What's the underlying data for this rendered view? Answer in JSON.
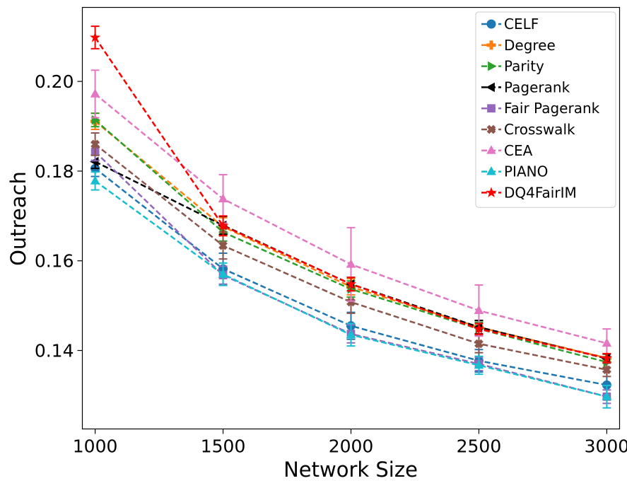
{
  "chart_data": {
    "type": "line",
    "title": "",
    "xlabel": "Network Size",
    "ylabel": "Outreach",
    "x": [
      1000,
      1500,
      2000,
      2500,
      3000
    ],
    "xlim": [
      950,
      3050
    ],
    "ylim": [
      0.1225,
      0.2165
    ],
    "xticks": [
      1000,
      1500,
      2000,
      2500,
      3000
    ],
    "xtick_labels": [
      "1000",
      "1500",
      "2000",
      "2500",
      "3000"
    ],
    "yticks": [
      0.14,
      0.16,
      0.18,
      0.2
    ],
    "ytick_labels": [
      "0.14",
      "0.16",
      "0.18",
      "0.20"
    ],
    "grid": false,
    "legend_position": "top-right",
    "series": [
      {
        "name": "CELF",
        "color": "#1f77b4",
        "marker": "circle",
        "values": [
          0.1806,
          0.1582,
          0.1455,
          0.1377,
          0.1323
        ],
        "errors": [
          0.0018,
          0.0035,
          0.003,
          0.0025,
          0.003
        ]
      },
      {
        "name": "Degree",
        "color": "#ff7f0e",
        "marker": "plus",
        "values": [
          0.1911,
          0.1676,
          0.1542,
          0.1452,
          0.1383
        ],
        "errors": [
          0.0018,
          0.002,
          0.0018,
          0.0015,
          0.001
        ]
      },
      {
        "name": "Parity",
        "color": "#2ca02c",
        "marker": "triangle-right",
        "values": [
          0.1914,
          0.1664,
          0.1537,
          0.1448,
          0.1374
        ],
        "errors": [
          0.0015,
          0.002,
          0.0018,
          0.0015,
          0.0012
        ]
      },
      {
        "name": "Pagerank",
        "color": "#000000",
        "marker": "triangle-left",
        "values": [
          0.1821,
          0.1679,
          0.1548,
          0.1452,
          0.1382
        ],
        "errors": [
          0.0015,
          0.002,
          0.0015,
          0.0015,
          0.001
        ]
      },
      {
        "name": "Fair Pagerank",
        "color": "#9467bd",
        "marker": "square",
        "values": [
          0.1843,
          0.1568,
          0.1437,
          0.137,
          0.1297
        ],
        "errors": [
          0.002,
          0.002,
          0.002,
          0.0015,
          0.0015
        ]
      },
      {
        "name": "Crosswalk",
        "color": "#8c564b",
        "marker": "x-filled",
        "values": [
          0.186,
          0.1634,
          0.1508,
          0.1415,
          0.1357
        ],
        "errors": [
          0.0025,
          0.003,
          0.0025,
          0.002,
          0.0015
        ]
      },
      {
        "name": "CEA",
        "color": "#e377c2",
        "marker": "triangle-up",
        "values": [
          0.1972,
          0.1738,
          0.1592,
          0.1489,
          0.1416
        ],
        "errors": [
          0.0053,
          0.0054,
          0.0082,
          0.0057,
          0.0032
        ]
      },
      {
        "name": "PIANO",
        "color": "#17becf",
        "marker": "triangle-up",
        "values": [
          0.1778,
          0.157,
          0.1435,
          0.1367,
          0.1297
        ],
        "errors": [
          0.002,
          0.0025,
          0.0025,
          0.002,
          0.0025
        ]
      },
      {
        "name": "DQ4FairIM",
        "color": "#ff0000",
        "marker": "star",
        "values": [
          0.2098,
          0.1678,
          0.1548,
          0.1448,
          0.1383
        ],
        "errors": [
          0.0025,
          0.0022,
          0.0015,
          0.0012,
          0.001
        ]
      }
    ]
  }
}
